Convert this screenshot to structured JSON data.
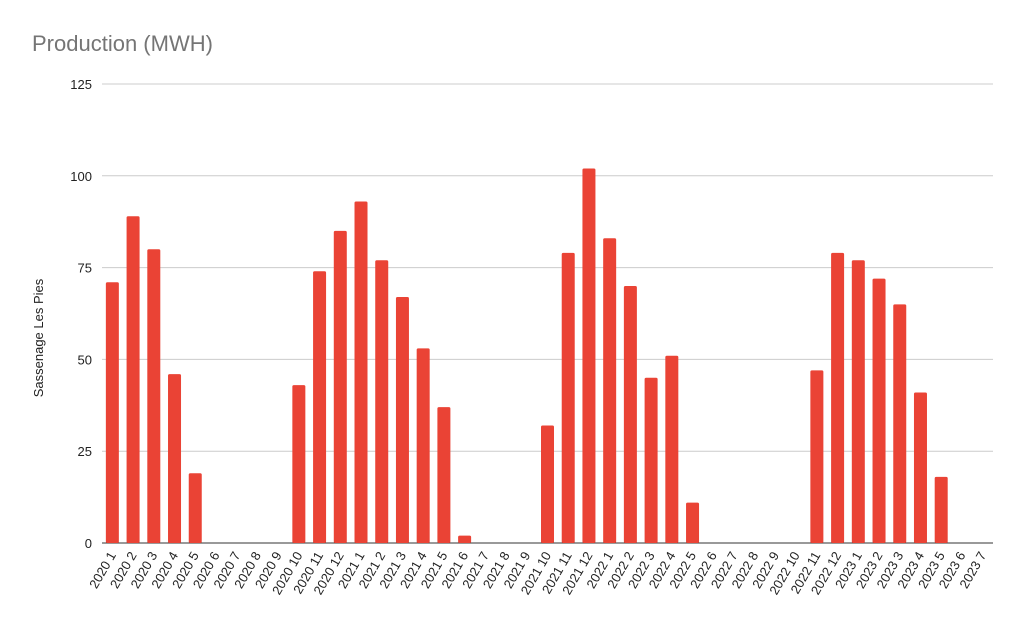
{
  "chart_data": {
    "type": "bar",
    "title": "Production (MWH)",
    "y_label": "Sassenage Les Pies",
    "categories": [
      "2020 1",
      "2020 2",
      "2020 3",
      "2020 4",
      "2020 5",
      "2020 6",
      "2020 7",
      "2020 8",
      "2020 9",
      "2020 10",
      "2020 11",
      "2020 12",
      "2021 1",
      "2021 2",
      "2021 3",
      "2021 4",
      "2021 5",
      "2021 6",
      "2021 7",
      "2021 8",
      "2021 9",
      "2021 10",
      "2021 11",
      "2021 12",
      "2022 1",
      "2022 2",
      "2022 3",
      "2022 4",
      "2022 5",
      "2022 6",
      "2022 7",
      "2022 8",
      "2022 9",
      "2022 10",
      "2022 11",
      "2022 12",
      "2023 1",
      "2023 2",
      "2023 3",
      "2023 4",
      "2023 5",
      "2023 6",
      "2023 7"
    ],
    "values": [
      71,
      89,
      80,
      46,
      19,
      0,
      0,
      0,
      0,
      43,
      74,
      85,
      93,
      77,
      67,
      53,
      37,
      2,
      0,
      0,
      0,
      32,
      79,
      102,
      83,
      70,
      45,
      51,
      11,
      0,
      0,
      0,
      0,
      0,
      47,
      79,
      77,
      72,
      65,
      41,
      18,
      0,
      0
    ],
    "color": "#ea4335",
    "ylim": [
      0,
      125
    ],
    "yticks": [
      0,
      25,
      50,
      75,
      100,
      125
    ],
    "grid": true
  }
}
